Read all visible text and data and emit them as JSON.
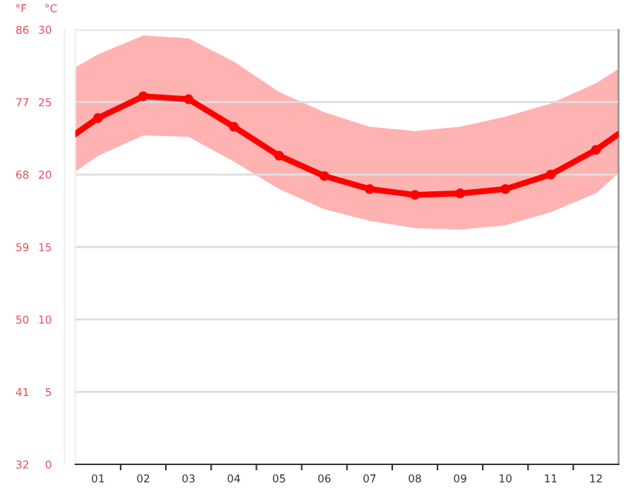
{
  "chart_data": {
    "type": "line",
    "x": [
      0.5,
      1,
      2,
      3,
      4,
      5,
      6,
      7,
      8,
      9,
      10,
      11,
      12,
      12.5
    ],
    "series": [
      {
        "color": "#ff0000",
        "values": [
          22.8,
          23.9,
          25.4,
          25.2,
          23.3,
          21.3,
          19.9,
          19.0,
          18.6,
          18.7,
          19.0,
          20.0,
          21.7,
          22.8
        ],
        "lower": [
          20.2,
          21.3,
          22.7,
          22.6,
          20.9,
          19.0,
          17.6,
          16.8,
          16.3,
          16.2,
          16.5,
          17.4,
          18.7,
          20.1
        ],
        "upper": [
          27.4,
          28.3,
          29.6,
          29.4,
          27.8,
          25.7,
          24.3,
          23.3,
          23.0,
          23.3,
          24.0,
          24.9,
          26.3,
          27.3
        ]
      }
    ],
    "xlim": [
      0.5,
      12.5
    ],
    "xticks": [
      {
        "value": 1,
        "label": "01"
      },
      {
        "value": 2,
        "label": "02"
      },
      {
        "value": 3,
        "label": "03"
      },
      {
        "value": 4,
        "label": "04"
      },
      {
        "value": 5,
        "label": "05"
      },
      {
        "value": 6,
        "label": "06"
      },
      {
        "value": 7,
        "label": "07"
      },
      {
        "value": 8,
        "label": "08"
      },
      {
        "value": 9,
        "label": "09"
      },
      {
        "value": 10,
        "label": "10"
      },
      {
        "value": 11,
        "label": "11"
      },
      {
        "value": 12,
        "label": "12"
      },
      {
        "value": 1.5,
        "label": null
      },
      {
        "value": 2.5,
        "label": null
      },
      {
        "value": 3.5,
        "label": null
      },
      {
        "value": 4.5,
        "label": null
      },
      {
        "value": 5.5,
        "label": null
      },
      {
        "value": 6.5,
        "label": null
      },
      {
        "value": 7.5,
        "label": null
      },
      {
        "value": 8.5,
        "label": null
      },
      {
        "value": 9.5,
        "label": null
      },
      {
        "value": 10.5,
        "label": null
      },
      {
        "value": 11.5,
        "label": null
      }
    ],
    "ylim": [
      0,
      30
    ],
    "yticks": [
      0,
      5,
      10,
      15,
      20,
      25,
      30
    ],
    "y2lim": [
      32,
      86
    ],
    "y2ticks": [
      32,
      41,
      50,
      59,
      68,
      77,
      86
    ],
    "ylabel": "°C",
    "y2label": "°F",
    "grid": "y",
    "marker": "circle",
    "line_style": "solid",
    "legend": false
  }
}
